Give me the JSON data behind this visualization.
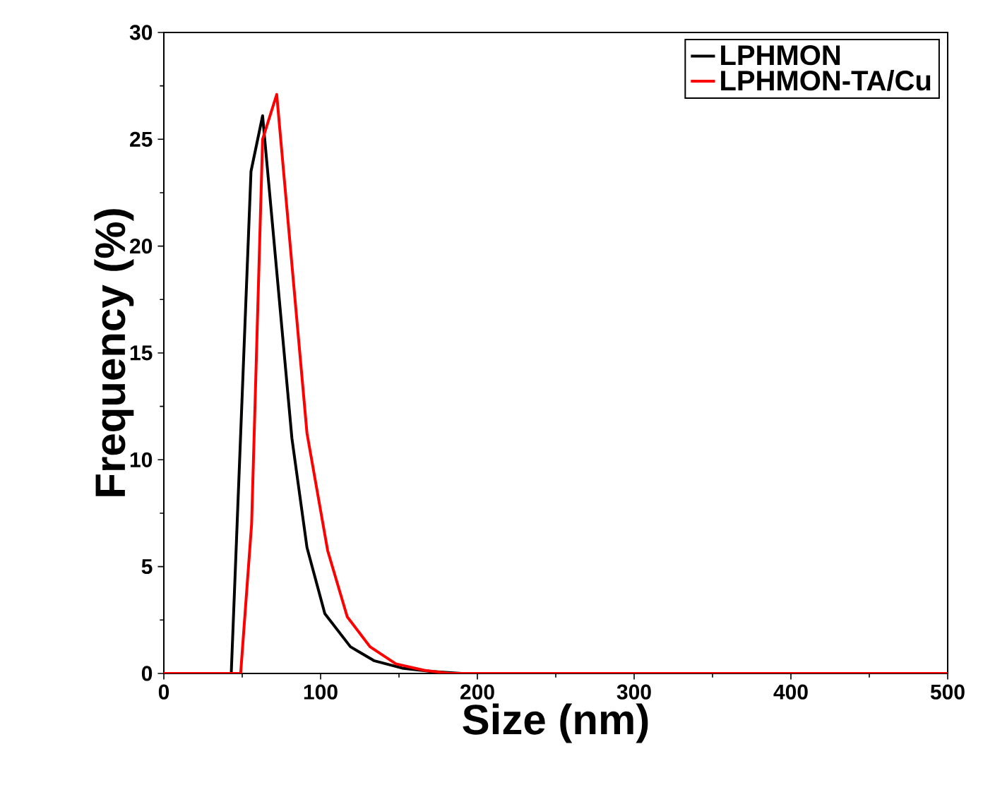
{
  "chart_data": {
    "type": "line",
    "xlabel": "Size (nm)",
    "ylabel": "Frequency (%)",
    "xlim": [
      0,
      500
    ],
    "ylim": [
      0,
      30
    ],
    "xticks": [
      0,
      100,
      200,
      300,
      400,
      500
    ],
    "yticks": [
      0,
      5,
      10,
      15,
      20,
      25,
      30
    ],
    "legend": "top right",
    "grid": false,
    "marker": "none",
    "line_style": "solid",
    "series": [
      {
        "name": "LPHMON",
        "color": "#000000",
        "x": [
          0,
          43,
          55.6,
          63,
          81.7,
          91.3,
          102.7,
          119,
          134,
          152,
          170,
          190,
          500
        ],
        "values": [
          0,
          0,
          23.5,
          26.1,
          11.0,
          5.9,
          2.8,
          1.25,
          0.6,
          0.25,
          0.1,
          0,
          0
        ]
      },
      {
        "name": "LPHMON-TA/Cu",
        "color": "#ff0000",
        "x": [
          0,
          49,
          56,
          63,
          72,
          91.3,
          104.5,
          117,
          131.5,
          148,
          166,
          182,
          500
        ],
        "values": [
          0,
          0,
          7.0,
          25,
          27.1,
          11.25,
          5.75,
          2.65,
          1.25,
          0.45,
          0.15,
          0,
          0
        ]
      }
    ]
  }
}
